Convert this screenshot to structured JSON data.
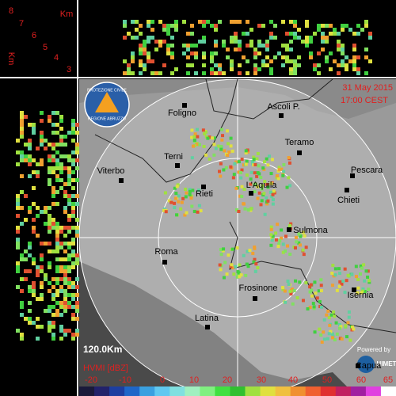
{
  "height_panel": {
    "unit": "Km",
    "labels": [
      "8",
      "7",
      "6",
      "5",
      "4",
      "3"
    ],
    "side_unit": "Km",
    "side_top": "8"
  },
  "header": {
    "date": "31 May 2015",
    "time": "17:00 CEST"
  },
  "logo": {
    "line1": "PROTEZIONE CIVILE",
    "line2": "REGIONE ABRUZZO"
  },
  "cities": [
    "Foligno",
    "Ascoli P.",
    "Teramo",
    "Terni",
    "Pescara",
    "Viterbo",
    "L'Aquila",
    "Rieti",
    "Chieti",
    "Sulmona",
    "Roma",
    "Frosinone",
    "Isernia",
    "Latina",
    "Capua"
  ],
  "range": "120.0Km",
  "scale": {
    "title": "HVMI [dBZ]",
    "labels": [
      "-20",
      "-10",
      "0",
      "10",
      "20",
      "30",
      "40",
      "50",
      "60",
      "65"
    ]
  },
  "credit": {
    "line1": "Powered by",
    "brand": "HIMET"
  }
}
